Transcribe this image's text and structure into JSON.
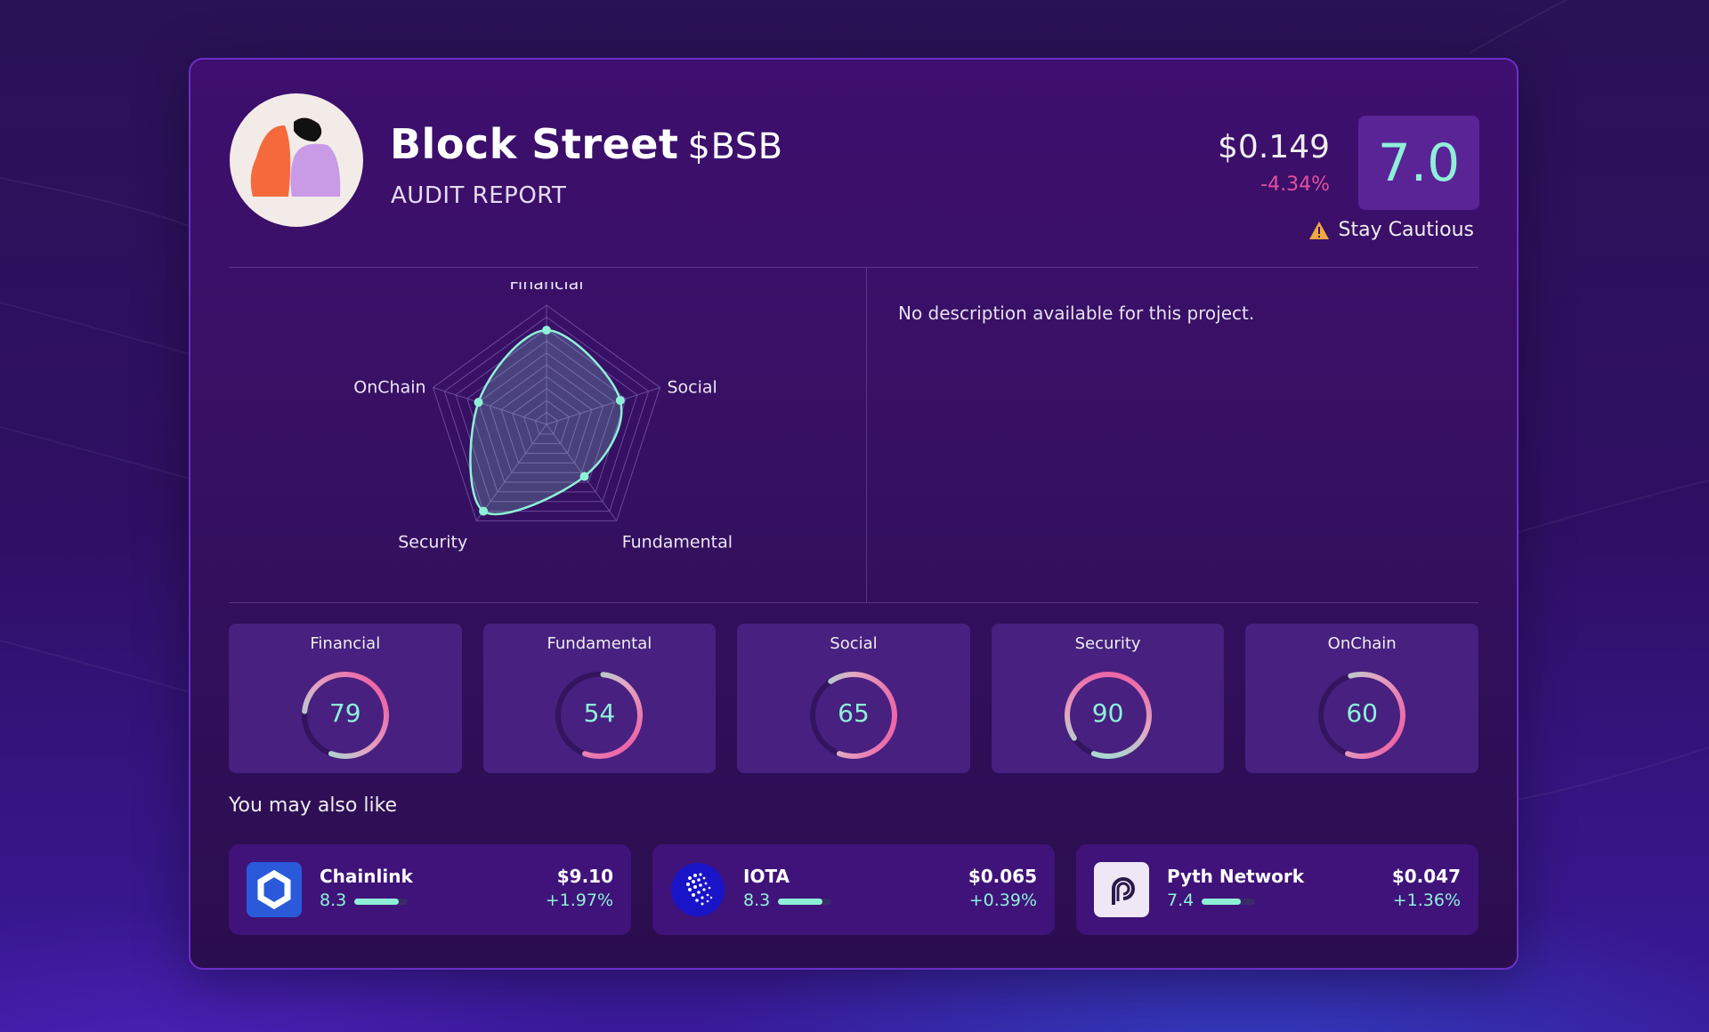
{
  "project": {
    "name": "Block Street",
    "ticker": "$BSB",
    "subtitle": "AUDIT REPORT",
    "price": "$0.149",
    "change": "-4.34%",
    "score": "7.0",
    "verdict": "Stay Cautious"
  },
  "description": "No description available for this project.",
  "chart_data": {
    "type": "radar",
    "axes": [
      "Financial",
      "Social",
      "Fundamental",
      "Security",
      "OnChain"
    ],
    "values": [
      79,
      65,
      54,
      90,
      60
    ],
    "range": [
      0,
      100
    ],
    "colors": {
      "line": "#8ff0d8",
      "grid": "#6a4a9a"
    }
  },
  "metrics": [
    {
      "label": "Financial",
      "value": 79
    },
    {
      "label": "Fundamental",
      "value": 54
    },
    {
      "label": "Social",
      "value": 65
    },
    {
      "label": "Security",
      "value": 90
    },
    {
      "label": "OnChain",
      "value": 60
    }
  ],
  "also_like": {
    "heading": "You may also like",
    "items": [
      {
        "name": "Chainlink",
        "score": "8.3",
        "score_fraction": 0.83,
        "price": "$9.10",
        "change": "+1.97%",
        "icon": "chainlink-icon"
      },
      {
        "name": "IOTA",
        "score": "8.3",
        "score_fraction": 0.83,
        "price": "$0.065",
        "change": "+0.39%",
        "icon": "iota-icon"
      },
      {
        "name": "Pyth Network",
        "score": "7.4",
        "score_fraction": 0.74,
        "price": "$0.047",
        "change": "+1.36%",
        "icon": "pyth-icon"
      }
    ]
  },
  "colors": {
    "accent": "#8ff0d8",
    "negative": "#e0519f",
    "card": "#472080"
  }
}
